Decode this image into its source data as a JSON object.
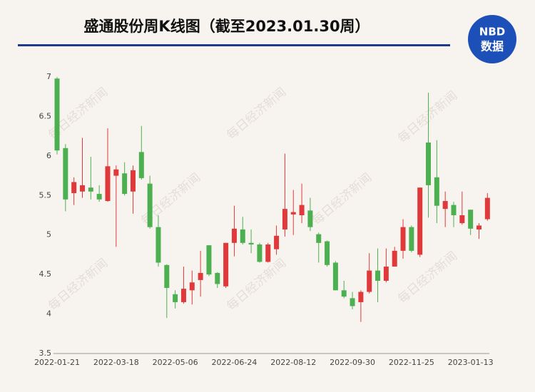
{
  "logo": {
    "line1": "NBD",
    "line2": "数据"
  },
  "watermark": "每日经济新闻",
  "chart_data": {
    "type": "candlestick",
    "title": "盛通股份周K线图（截至2023.01.30周）",
    "categories": [
      "2022-01-21",
      null,
      null,
      null,
      null,
      null,
      null,
      "2022-03-18",
      null,
      null,
      null,
      null,
      null,
      null,
      "2022-05-06",
      null,
      null,
      null,
      null,
      null,
      null,
      "2022-06-24",
      null,
      null,
      null,
      null,
      null,
      null,
      "2022-08-12",
      null,
      null,
      null,
      null,
      null,
      null,
      "2022-09-30",
      null,
      null,
      null,
      null,
      null,
      null,
      "2022-11-25",
      null,
      null,
      null,
      null,
      null,
      null,
      "2023-01-13",
      null,
      null
    ],
    "open": [
      6.98,
      6.1,
      5.53,
      5.55,
      5.6,
      5.52,
      5.43,
      5.75,
      5.78,
      5.55,
      6.05,
      5.65,
      5.1,
      4.62,
      4.25,
      4.15,
      4.3,
      4.43,
      4.87,
      4.52,
      4.35,
      4.9,
      5.07,
      4.9,
      4.88,
      4.66,
      4.82,
      5.07,
      5.26,
      5.25,
      5.31,
      5.01,
      4.92,
      4.65,
      4.3,
      4.2,
      4.15,
      4.28,
      4.55,
      4.42,
      4.6,
      4.8,
      5.1,
      4.75,
      6.17,
      5.73,
      5.33,
      5.38,
      5.15,
      5.32,
      5.07,
      5.2
    ],
    "high": [
      7.0,
      6.15,
      5.73,
      6.23,
      5.99,
      5.63,
      6.35,
      5.88,
      5.92,
      5.88,
      6.38,
      5.75,
      5.25,
      4.63,
      4.3,
      4.6,
      4.55,
      4.8,
      4.87,
      4.53,
      4.9,
      5.37,
      5.23,
      5.07,
      4.9,
      4.9,
      5.12,
      6.03,
      5.57,
      5.65,
      5.47,
      5.03,
      4.93,
      4.67,
      4.42,
      4.28,
      4.3,
      4.77,
      4.83,
      4.83,
      4.85,
      5.2,
      5.12,
      5.6,
      6.8,
      6.2,
      5.55,
      5.42,
      5.55,
      5.32,
      5.15,
      5.53
    ],
    "low": [
      6.02,
      5.3,
      5.38,
      5.47,
      5.45,
      5.42,
      5.42,
      4.85,
      5.5,
      5.27,
      5.7,
      5.08,
      4.6,
      3.95,
      4.07,
      4.13,
      4.12,
      4.22,
      4.48,
      4.33,
      4.33,
      4.73,
      4.88,
      4.77,
      4.65,
      4.65,
      4.75,
      4.98,
      5.0,
      5.15,
      5.05,
      4.65,
      4.6,
      4.3,
      4.2,
      4.06,
      3.9,
      4.26,
      4.15,
      4.4,
      4.6,
      4.7,
      4.78,
      4.72,
      5.22,
      5.15,
      5.1,
      5.1,
      5.13,
      5.0,
      4.95,
      5.18
    ],
    "close": [
      6.07,
      5.45,
      5.67,
      5.63,
      5.55,
      5.45,
      5.87,
      5.83,
      5.52,
      5.82,
      5.72,
      5.1,
      4.65,
      4.33,
      4.15,
      4.32,
      4.4,
      4.52,
      4.5,
      4.38,
      4.9,
      5.08,
      4.9,
      4.88,
      4.66,
      4.88,
      4.99,
      5.33,
      5.29,
      5.38,
      5.1,
      4.9,
      4.62,
      4.3,
      4.22,
      4.1,
      4.28,
      4.55,
      4.42,
      4.6,
      4.8,
      5.1,
      4.8,
      5.6,
      5.63,
      5.37,
      5.43,
      5.25,
      5.25,
      5.08,
      5.12,
      5.47
    ],
    "up_color": "#e0393b",
    "down_color": "#4caf50",
    "ylim": [
      3.5,
      7
    ],
    "yticks": [
      3.5,
      4,
      4.5,
      5,
      5.5,
      6,
      6.5,
      7
    ]
  }
}
